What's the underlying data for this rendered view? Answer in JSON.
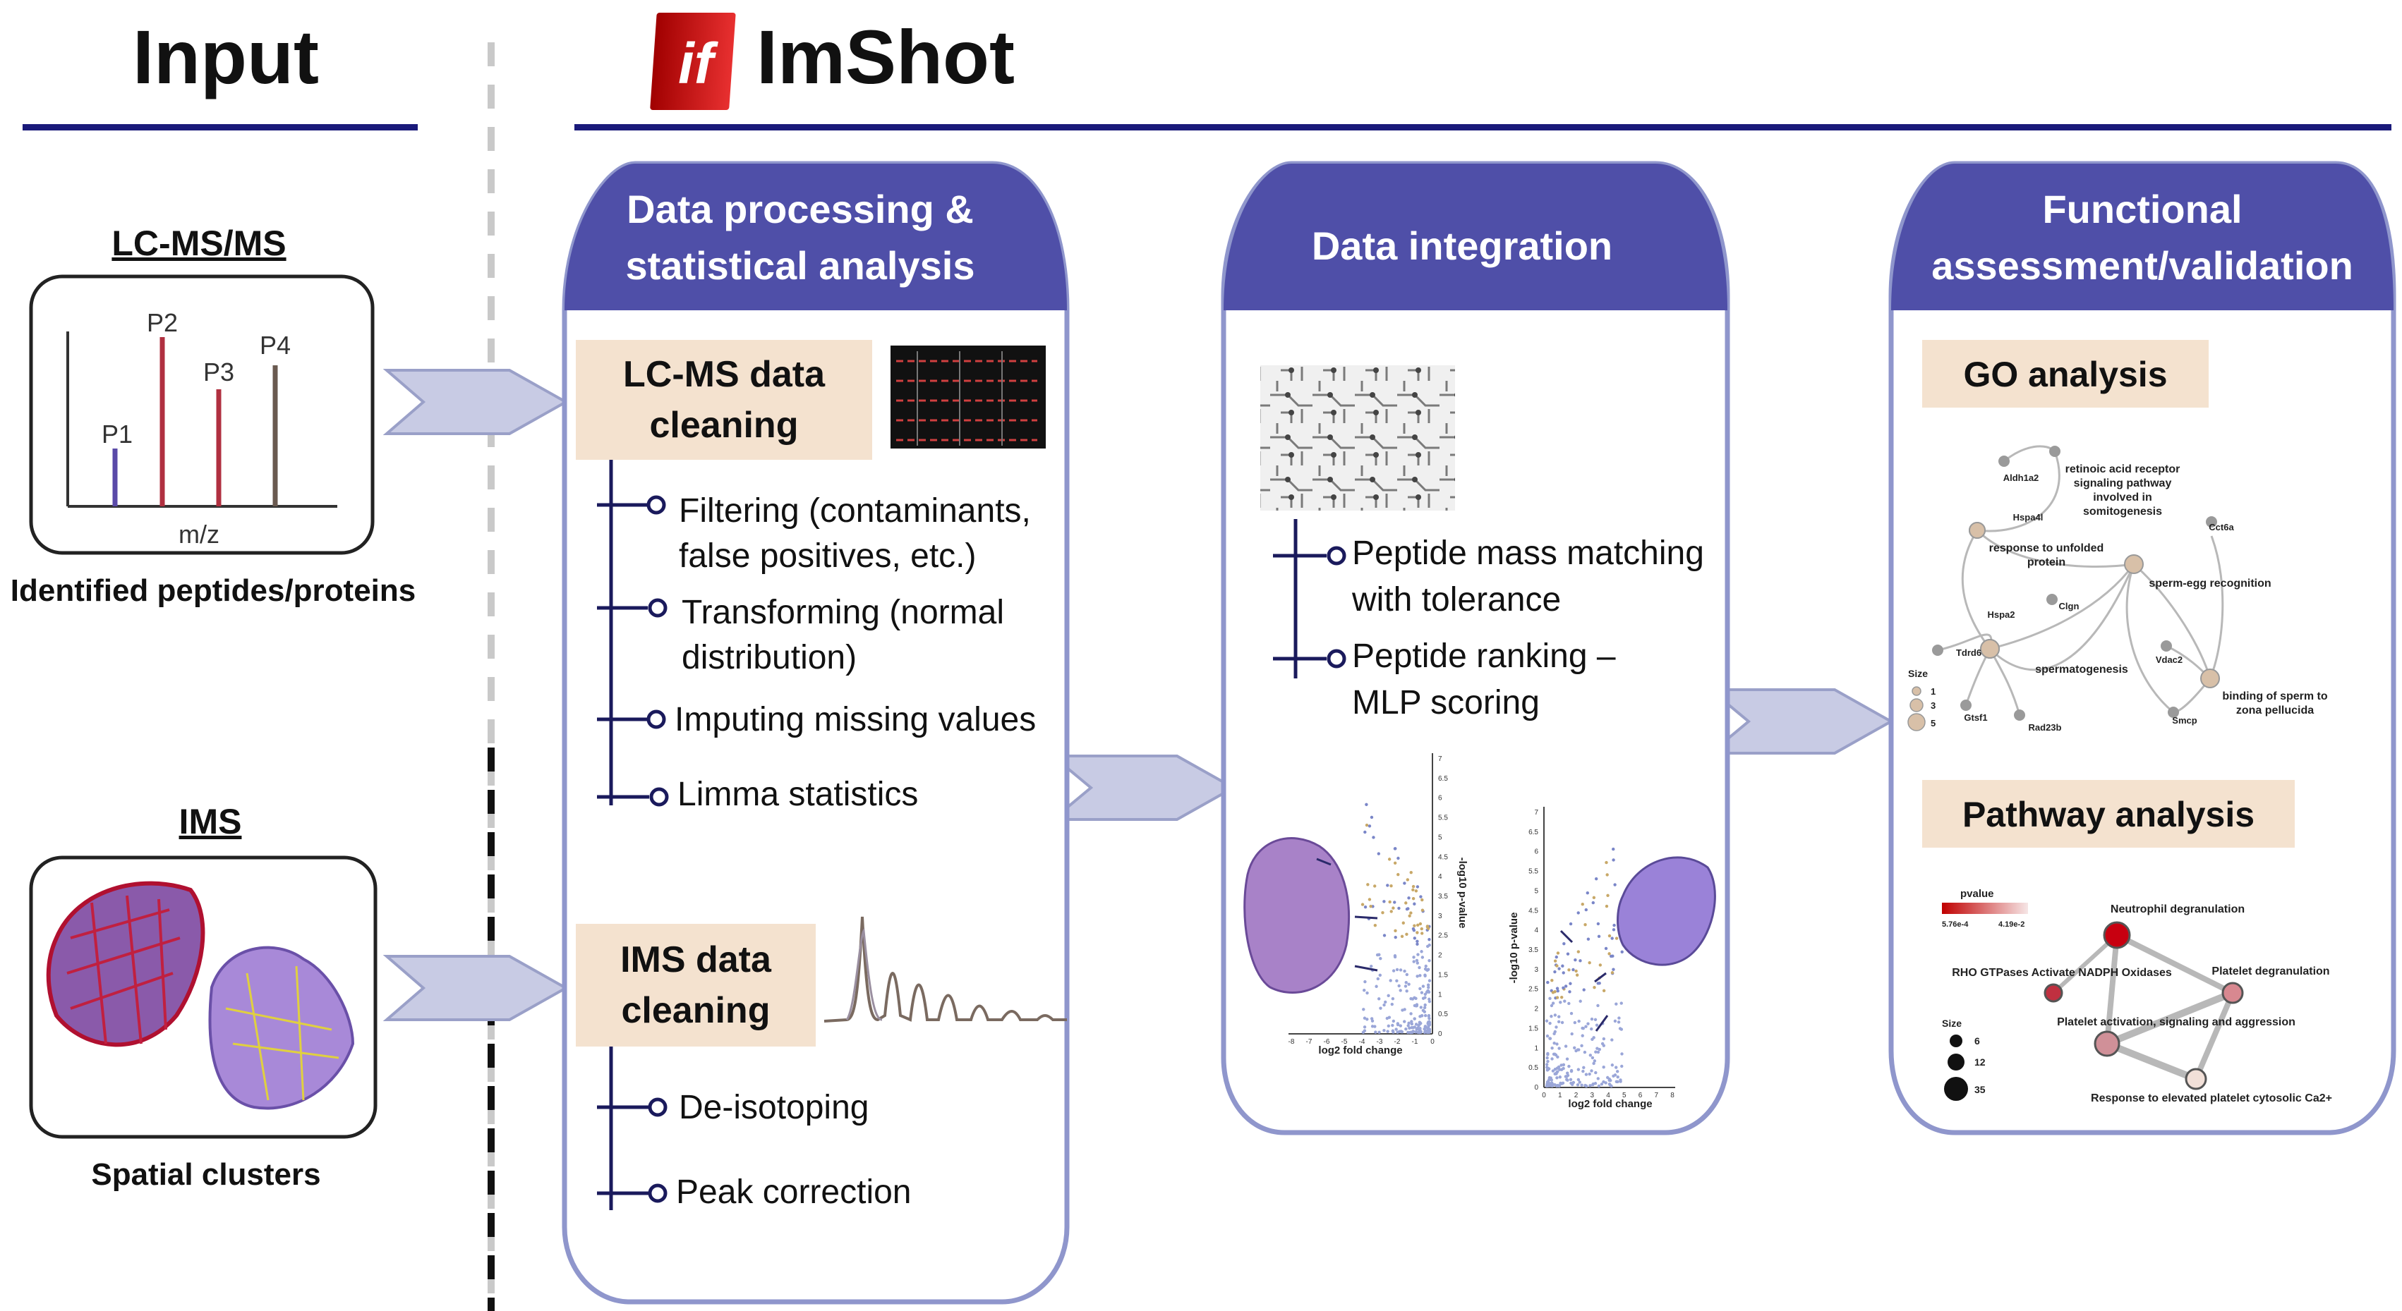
{
  "headers": {
    "input": "Input",
    "brand": "ImShot",
    "logo_text": "if"
  },
  "inputs": {
    "lcms_title": "LC-MS/MS",
    "lcms_caption": "Identified peptides/proteins",
    "spectrum": {
      "peaks": [
        "P1",
        "P2",
        "P3",
        "P4"
      ],
      "xlabel": "m/z"
    },
    "ims_title": "IMS",
    "ims_caption": "Spatial clusters"
  },
  "panels": {
    "processing": {
      "title_line1": "Data processing &",
      "title_line2": "statistical analysis",
      "lcms_badge_line1": "LC-MS data",
      "lcms_badge_line2": "cleaning",
      "lcms_steps": [
        {
          "l1": "Filtering (contaminants,",
          "l2": "false positives, etc.)"
        },
        {
          "l1": "Transforming (normal",
          "l2": "distribution)"
        },
        {
          "l1": "Imputing missing values",
          "l2": ""
        },
        {
          "l1": "Limma statistics",
          "l2": ""
        }
      ],
      "ims_badge_line1": "IMS data",
      "ims_badge_line2": "cleaning",
      "ims_steps": [
        "De-isotoping",
        "Peak correction"
      ]
    },
    "integration": {
      "title": "Data integration",
      "steps": [
        {
          "l1": "Peptide mass matching",
          "l2": "with tolerance"
        },
        {
          "l1": "Peptide ranking –",
          "l2": "MLP scoring"
        }
      ],
      "volcano_left": {
        "xlabel": "log2 fold change",
        "ylabel": "-log10 p-value",
        "xticks": [
          "-8",
          "-7",
          "-6",
          "-5",
          "-4",
          "-3",
          "-2",
          "-1",
          "0"
        ],
        "yticks": [
          "0",
          "0.5",
          "1",
          "1.5",
          "2",
          "2.5",
          "3",
          "3.5",
          "4",
          "4.5",
          "5",
          "5.5",
          "6",
          "6.5",
          "7"
        ]
      },
      "volcano_right": {
        "xlabel": "log2 fold change",
        "ylabel": "-log10 p-value",
        "xticks": [
          "0",
          "1",
          "2",
          "3",
          "4",
          "5",
          "6",
          "7",
          "8"
        ],
        "yticks": [
          "0",
          "0.5",
          "1",
          "1.5",
          "2",
          "2.5",
          "3",
          "3.5",
          "4",
          "4.5",
          "5",
          "5.5",
          "6",
          "6.5",
          "7"
        ]
      }
    },
    "functional": {
      "title_line1": "Functional",
      "title_line2": "assessment/validation",
      "go_badge": "GO analysis",
      "go_network": {
        "terms": [
          "retinoic acid receptor",
          "signaling pathway",
          "involved in",
          "somitogenesis",
          "response to unfolded",
          "protein",
          "sperm-egg recognition",
          "spermatogenesis",
          "binding of sperm to",
          "zona pellucida"
        ],
        "genes": [
          "Aldh1a2",
          "Hspa4l",
          "Cct6a",
          "Clgn",
          "Hspa2",
          "Tdrd6",
          "Vdac2",
          "Gtsf1",
          "Rad23b",
          "Smcp"
        ],
        "size_legend_title": "Size",
        "size_legend": [
          "1",
          "3",
          "5"
        ]
      },
      "pathway_badge": "Pathway analysis",
      "pathway_network": {
        "pvalue_title": "pvalue",
        "pvalue_min": "5.76e-4",
        "pvalue_max": "4.19e-2",
        "nodes": [
          "Neutrophil degranulation",
          "RHO GTPases Activate NADPH Oxidases",
          "Platelet degranulation",
          "Platelet activation, signaling and aggression",
          "Response to elevated platelet cytosolic Ca2+"
        ],
        "size_legend_title": "Size",
        "size_legend": [
          "6",
          "12",
          "35"
        ]
      }
    }
  },
  "colors": {
    "panel_border": "#8f96cc",
    "panel_header": "#4f4fa8",
    "header_line": "#1a1a7a",
    "badge": "#f4e2cf",
    "step_line": "#1a1a5c",
    "arrow_fill": "#c8cbe4",
    "arrow_stroke": "#9aa0c8"
  }
}
